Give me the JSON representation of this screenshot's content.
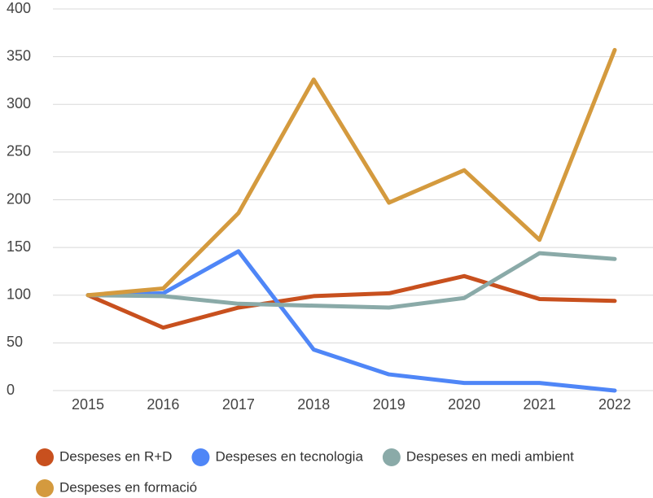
{
  "chart_data": {
    "type": "line",
    "categories": [
      "2015",
      "2016",
      "2017",
      "2018",
      "2019",
      "2020",
      "2021",
      "2022"
    ],
    "series": [
      {
        "name": "Despeses en R+D",
        "color": "#c8501e",
        "values": [
          100,
          66,
          87,
          99,
          102,
          120,
          96,
          94
        ]
      },
      {
        "name": "Despeses en tecnologia",
        "color": "#4f86f7",
        "values": [
          100,
          102,
          146,
          43,
          17,
          8,
          8,
          0
        ]
      },
      {
        "name": "Despeses en medi ambient",
        "color": "#8aaaa8",
        "values": [
          100,
          99,
          91,
          89,
          87,
          97,
          144,
          138
        ]
      },
      {
        "name": "Despeses en formació",
        "color": "#d49a3e",
        "values": [
          100,
          107,
          186,
          326,
          197,
          231,
          158,
          357
        ]
      }
    ],
    "ylim": [
      0,
      400
    ],
    "yticks": [
      0,
      50,
      100,
      150,
      200,
      250,
      300,
      350,
      400
    ],
    "grid": true,
    "legend": "bottom"
  }
}
